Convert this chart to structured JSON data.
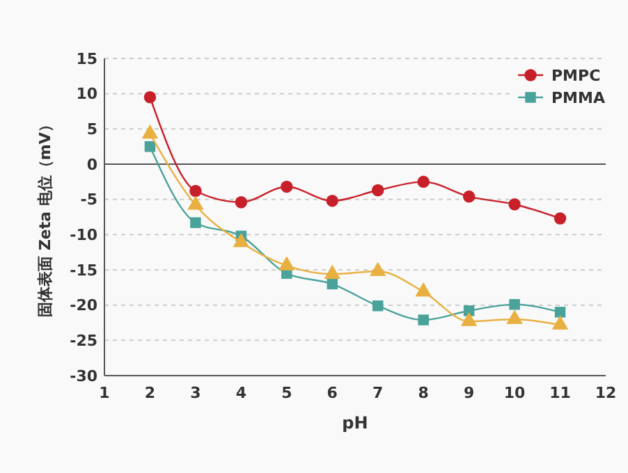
{
  "chart_data": {
    "type": "line",
    "xlabel": "pH",
    "ylabel": "固体表面 Zeta 电位（mV）",
    "x": [
      2,
      3,
      4,
      5,
      6,
      7,
      8,
      9,
      10,
      11
    ],
    "series": [
      {
        "name": "PMPC",
        "color": "#c8202a",
        "marker": "circle",
        "values": [
          9.5,
          -3.8,
          -5.4,
          -3.2,
          -5.2,
          -3.7,
          -2.5,
          -4.6,
          -5.7,
          -7.7
        ]
      },
      {
        "name": "PMMA",
        "color": "#4aa39a",
        "marker": "square",
        "values": [
          2.5,
          -8.3,
          -10.2,
          -15.5,
          -17,
          -20.1,
          -22.1,
          -20.8,
          -19.9,
          -21
        ]
      },
      {
        "color": "#e8b040",
        "marker": "triangle",
        "values": [
          4.3,
          -5.8,
          -11.1,
          -14.4,
          -15.6,
          -15.2,
          -18.1,
          -22.3,
          -22,
          -22.8
        ]
      }
    ],
    "xlim": [
      1,
      12
    ],
    "xticks": [
      1,
      2,
      3,
      4,
      5,
      6,
      7,
      8,
      9,
      10,
      11,
      12
    ],
    "ylim": [
      -30,
      15
    ],
    "yticks": [
      -30,
      -25,
      -20,
      -15,
      -10,
      -5,
      0,
      5,
      10,
      15
    ],
    "grid": "y",
    "legend": "top right",
    "ref_lines": [
      {
        "axis": "y",
        "value": 0,
        "color": "#555555"
      }
    ]
  }
}
